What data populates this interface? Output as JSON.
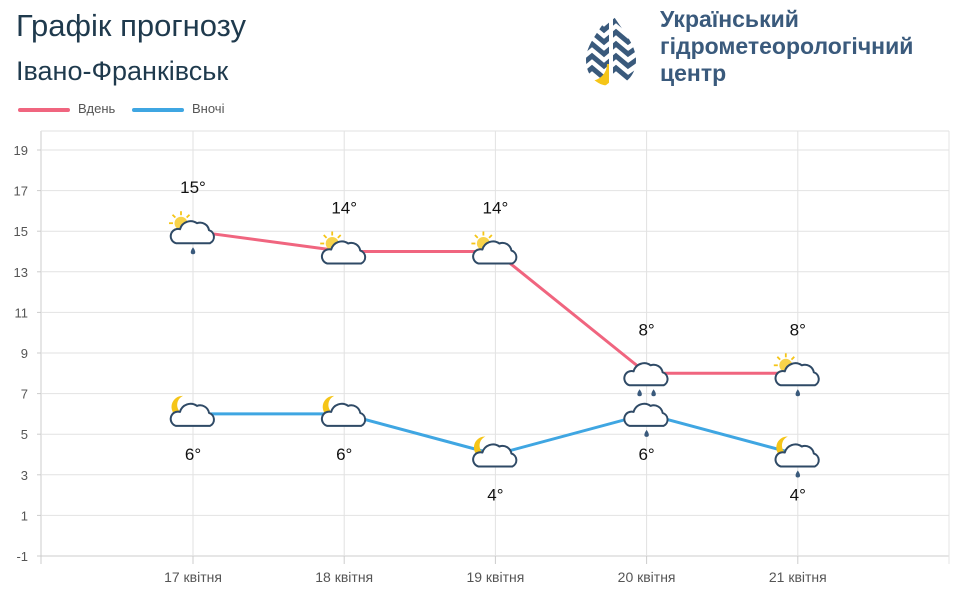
{
  "header": {
    "title": "Графік прогнозу",
    "city": "Івано-Франківськ"
  },
  "logo": {
    "line1": "Український",
    "line2": "гідрометеорологічний",
    "line3": "центр"
  },
  "colors": {
    "day": "#f0657f",
    "night": "#3fa6e2",
    "grid": "#e2e2e2",
    "axis_text": "#555555",
    "logo_blue": "#3a5a7c",
    "logo_yellow": "#f5c518"
  },
  "chart_data": {
    "type": "line",
    "title": "Графік прогнозу",
    "categories": [
      "17 квітня",
      "18 квітня",
      "19 квітня",
      "20 квітня",
      "21 квітня"
    ],
    "ylim": [
      -1,
      19
    ],
    "yticks": [
      -1,
      1,
      3,
      5,
      7,
      9,
      11,
      13,
      15,
      17,
      19
    ],
    "grid": true,
    "legend_position": "top-left",
    "series": [
      {
        "name": "Вдень",
        "key": "day",
        "values": [
          15,
          14,
          14,
          8,
          8
        ],
        "labels": [
          "15°",
          "14°",
          "14°",
          "8°",
          "8°"
        ],
        "icons": [
          "sun-cloud-rain-icon",
          "sun-cloud-icon",
          "sun-cloud-icon",
          "cloud-heavy-rain-icon",
          "sun-cloud-rain-icon"
        ]
      },
      {
        "name": "Вночі",
        "key": "night",
        "values": [
          6,
          6,
          4,
          6,
          4
        ],
        "labels": [
          "6°",
          "6°",
          "4°",
          "6°",
          "4°"
        ],
        "icons": [
          "moon-cloud-icon",
          "moon-cloud-icon",
          "moon-cloud-icon",
          "cloud-rain-icon",
          "moon-cloud-rain-icon"
        ]
      }
    ]
  }
}
